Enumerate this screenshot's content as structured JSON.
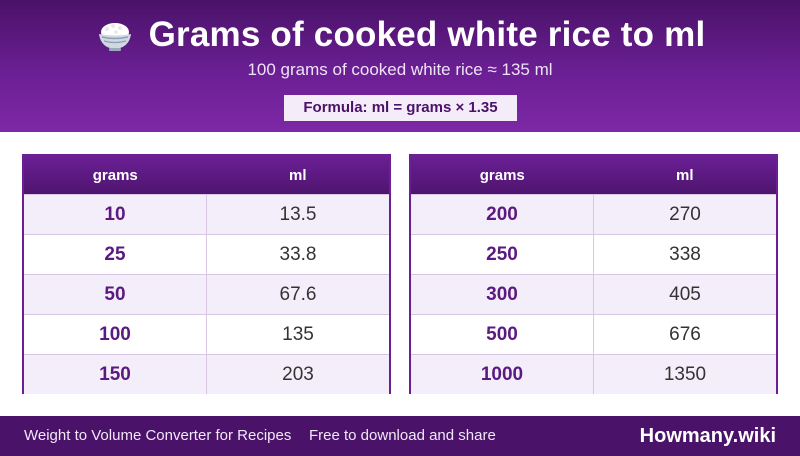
{
  "header": {
    "icon": "rice-bowl-icon",
    "title": "Grams of cooked white rice to ml",
    "subtitle": "100 grams of cooked white rice ≈ 135 ml",
    "formula": "Formula: ml = grams × 1.35"
  },
  "tables": {
    "left": {
      "col_grams": "grams",
      "col_ml": "ml",
      "rows": [
        {
          "grams": "10",
          "ml": "13.5"
        },
        {
          "grams": "25",
          "ml": "33.8"
        },
        {
          "grams": "50",
          "ml": "67.6"
        },
        {
          "grams": "100",
          "ml": "135"
        },
        {
          "grams": "150",
          "ml": "203"
        }
      ]
    },
    "right": {
      "col_grams": "grams",
      "col_ml": "ml",
      "rows": [
        {
          "grams": "200",
          "ml": "270"
        },
        {
          "grams": "250",
          "ml": "338"
        },
        {
          "grams": "300",
          "ml": "405"
        },
        {
          "grams": "500",
          "ml": "676"
        },
        {
          "grams": "1000",
          "ml": "1350"
        }
      ]
    }
  },
  "footer": {
    "left_text": "Weight to Volume Converter for Recipes",
    "mid_text": "Free to download and share",
    "brand": "Howmany.wiki"
  },
  "colors": {
    "header_purple": "#6b1f94",
    "dark_purple": "#4a1268",
    "row_alt": "#f4eefa"
  }
}
